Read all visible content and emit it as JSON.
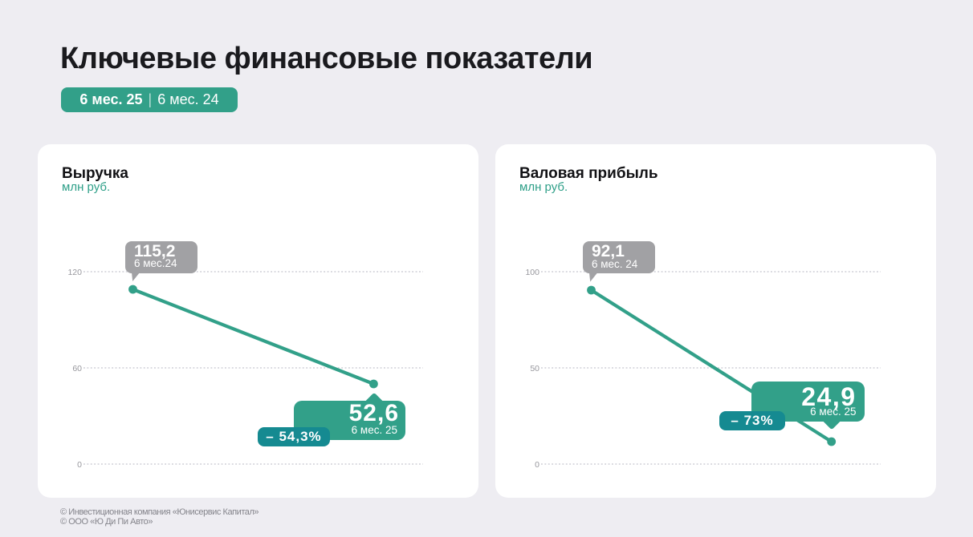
{
  "page": {
    "title": "Ключевые финансовые показатели",
    "period_badge": {
      "current": "6 мес. 25",
      "separator": "|",
      "previous": "6 мес. 24"
    },
    "footer_lines": [
      "© Инвестиционная компания «Юнисервис Капитал»",
      "© ООО «Ю Ди Пи Авто»"
    ]
  },
  "colors": {
    "background": "#EEEDF2",
    "card": "#FFFFFF",
    "accent_teal": "#32A089",
    "change_badge_teal": "#158A91",
    "previous_callout_gray": "#A1A1A4",
    "title_text": "#1A1A1E",
    "axis_label_gray": "#95959B",
    "grid_dots": "#DADAE0",
    "footer_gray": "#84848B"
  },
  "chart_data": [
    {
      "type": "line",
      "title": "Выручка",
      "unit": "млн руб.",
      "categories": [
        "6 мес. 24",
        "6 мес. 25"
      ],
      "values": [
        115.2,
        52.6
      ],
      "points": [
        {
          "label": "6 мес.24",
          "value": 115.2,
          "value_label": "115,2"
        },
        {
          "label": "6 мес. 25",
          "value": 52.6,
          "value_label": "52,6"
        }
      ],
      "change_label": "– 54,3%",
      "change_percent": -54.3,
      "yticks": [
        120,
        60,
        0
      ],
      "ytick_labels": [
        "120",
        "60",
        "0"
      ],
      "ylim": [
        0,
        155
      ],
      "grid": "dotted-horizontal",
      "legend": "none"
    },
    {
      "type": "line",
      "title": "Валовая прибыль",
      "unit": "млн руб.",
      "categories": [
        "6 мес. 24",
        "6 мес. 25"
      ],
      "values": [
        92.1,
        24.9
      ],
      "points": [
        {
          "label": "6 мес. 24",
          "value": 92.1,
          "value_label": "92,1"
        },
        {
          "label": "6 мес. 25",
          "value": 24.9,
          "value_label": "24,9"
        }
      ],
      "change_label": "– 73%",
      "change_percent": -73,
      "yticks": [
        100,
        50,
        0
      ],
      "ytick_labels": [
        "100",
        "50",
        "0"
      ],
      "ylim": [
        0,
        130
      ],
      "grid": "dotted-horizontal",
      "legend": "none"
    }
  ]
}
